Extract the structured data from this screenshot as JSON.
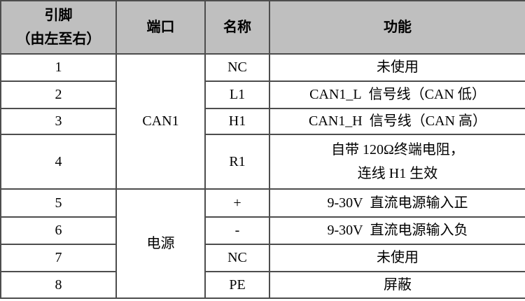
{
  "table": {
    "header": {
      "pin_lines": [
        "引脚",
        "（由左至右）"
      ],
      "port": "端口",
      "name": "名称",
      "function": "功能"
    },
    "port_groups": [
      {
        "label": "CAN1"
      },
      {
        "label": "电源"
      }
    ],
    "rows": [
      {
        "pin": "1",
        "name": "NC",
        "function": "未使用"
      },
      {
        "pin": "2",
        "name": "L1",
        "function": "CAN1_L  信号线（CAN 低）"
      },
      {
        "pin": "3",
        "name": "H1",
        "function": "CAN1_H  信号线（CAN 高）"
      },
      {
        "pin": "4",
        "name": "R1",
        "function_lines": [
          "自带 120Ω终端电阻，",
          "连线 H1 生效"
        ]
      },
      {
        "pin": "5",
        "name": "+",
        "function": "9-30V  直流电源输入正"
      },
      {
        "pin": "6",
        "name": "-",
        "function": "9-30V  直流电源输入负"
      },
      {
        "pin": "7",
        "name": "NC",
        "function": "未使用"
      },
      {
        "pin": "8",
        "name": "PE",
        "function": "屏蔽"
      }
    ]
  },
  "colors": {
    "header_bg": "#bfbfbf",
    "border": "#4d4d4d",
    "text": "#000000",
    "body_bg": "#ffffff"
  }
}
